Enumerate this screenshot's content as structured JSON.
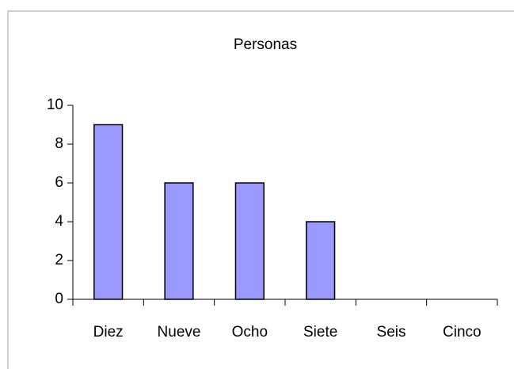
{
  "chart_data": {
    "type": "bar",
    "title": "Personas",
    "categories": [
      "Diez",
      "Nueve",
      "Ocho",
      "Siete",
      "Seis",
      "Cinco"
    ],
    "values": [
      9,
      6,
      6,
      4,
      0,
      0
    ],
    "color": "#9999ff",
    "ylim": [
      0,
      10
    ],
    "yticks": [
      0,
      2,
      4,
      6,
      8,
      10
    ],
    "grid": false
  }
}
